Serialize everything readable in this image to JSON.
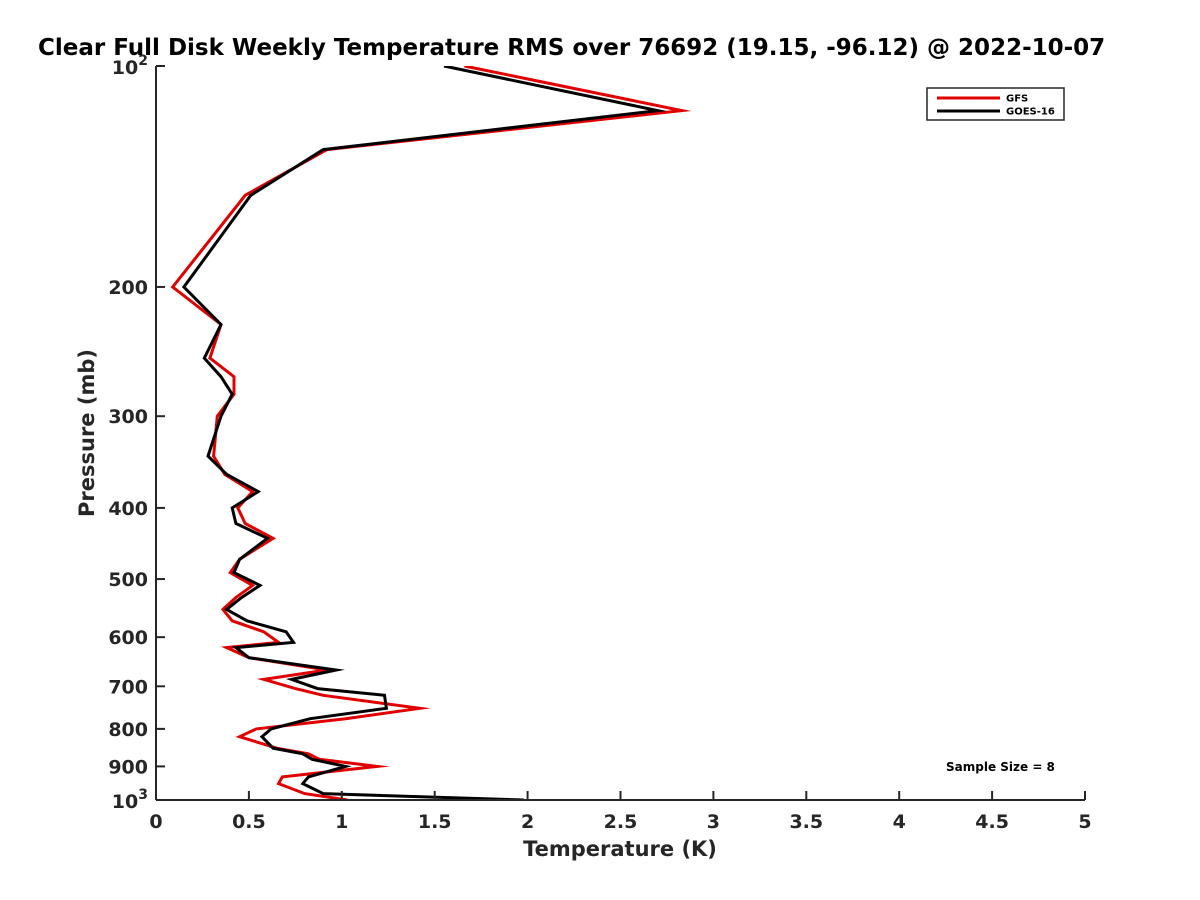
{
  "chart_data": {
    "type": "line",
    "title": "Clear Full Disk Weekly Temperature RMS over 76692 (19.15, -96.12) @ 2022-10-07",
    "xlabel": "Temperature (K)",
    "ylabel": "Pressure (mb)",
    "xlim": [
      0,
      5
    ],
    "ylim": [
      100,
      1000
    ],
    "yscale": "log",
    "y_reversed": true,
    "grid": false,
    "legend_position": "top-right",
    "x_ticks": [
      "0",
      "0.5",
      "1",
      "1.5",
      "2",
      "2.5",
      "3",
      "3.5",
      "4",
      "4.5",
      "5"
    ],
    "y_ticks": [
      {
        "value": 100,
        "label": "10",
        "sup": "2"
      },
      {
        "value": 200,
        "label": "200"
      },
      {
        "value": 300,
        "label": "300"
      },
      {
        "value": 400,
        "label": "400"
      },
      {
        "value": 500,
        "label": "500"
      },
      {
        "value": 600,
        "label": "600"
      },
      {
        "value": 700,
        "label": "700"
      },
      {
        "value": 800,
        "label": "800"
      },
      {
        "value": 900,
        "label": "900"
      },
      {
        "value": 1000,
        "label": "10",
        "sup": "3"
      }
    ],
    "series": [
      {
        "name": "GFS",
        "color": "#e00000",
        "points": [
          [
            1.66,
            100
          ],
          [
            2.83,
            115
          ],
          [
            0.92,
            130
          ],
          [
            0.48,
            150
          ],
          [
            0.09,
            200
          ],
          [
            0.35,
            225
          ],
          [
            0.29,
            250
          ],
          [
            0.42,
            265
          ],
          [
            0.42,
            280
          ],
          [
            0.33,
            300
          ],
          [
            0.31,
            340
          ],
          [
            0.37,
            360
          ],
          [
            0.52,
            380
          ],
          [
            0.44,
            400
          ],
          [
            0.48,
            420
          ],
          [
            0.63,
            440
          ],
          [
            0.45,
            470
          ],
          [
            0.4,
            490
          ],
          [
            0.52,
            510
          ],
          [
            0.43,
            530
          ],
          [
            0.36,
            550
          ],
          [
            0.41,
            570
          ],
          [
            0.58,
            590
          ],
          [
            0.66,
            610
          ],
          [
            0.38,
            620
          ],
          [
            0.5,
            640
          ],
          [
            0.92,
            665
          ],
          [
            0.58,
            685
          ],
          [
            0.75,
            705
          ],
          [
            0.9,
            720
          ],
          [
            1.42,
            750
          ],
          [
            1.02,
            775
          ],
          [
            0.54,
            800
          ],
          [
            0.45,
            820
          ],
          [
            0.65,
            850
          ],
          [
            0.82,
            865
          ],
          [
            0.88,
            880
          ],
          [
            1.19,
            900
          ],
          [
            0.68,
            930
          ],
          [
            0.66,
            950
          ],
          [
            0.8,
            980
          ],
          [
            1.03,
            1000
          ]
        ]
      },
      {
        "name": "GOES-16",
        "color": "#000000",
        "points": [
          [
            1.55,
            100
          ],
          [
            2.7,
            115
          ],
          [
            0.9,
            130
          ],
          [
            0.51,
            150
          ],
          [
            0.15,
            200
          ],
          [
            0.35,
            225
          ],
          [
            0.26,
            250
          ],
          [
            0.35,
            265
          ],
          [
            0.41,
            280
          ],
          [
            0.35,
            300
          ],
          [
            0.28,
            340
          ],
          [
            0.38,
            360
          ],
          [
            0.55,
            380
          ],
          [
            0.41,
            400
          ],
          [
            0.43,
            420
          ],
          [
            0.6,
            440
          ],
          [
            0.45,
            470
          ],
          [
            0.42,
            490
          ],
          [
            0.56,
            510
          ],
          [
            0.46,
            530
          ],
          [
            0.38,
            550
          ],
          [
            0.49,
            570
          ],
          [
            0.7,
            590
          ],
          [
            0.74,
            610
          ],
          [
            0.43,
            620
          ],
          [
            0.5,
            640
          ],
          [
            0.97,
            665
          ],
          [
            0.73,
            685
          ],
          [
            0.87,
            705
          ],
          [
            1.23,
            720
          ],
          [
            1.24,
            750
          ],
          [
            0.83,
            775
          ],
          [
            0.62,
            800
          ],
          [
            0.57,
            820
          ],
          [
            0.63,
            850
          ],
          [
            0.79,
            865
          ],
          [
            0.84,
            880
          ],
          [
            1.02,
            900
          ],
          [
            0.82,
            930
          ],
          [
            0.79,
            950
          ],
          [
            0.9,
            980
          ],
          [
            1.98,
            1000
          ]
        ]
      }
    ],
    "annotations": [
      "Sample Size = 8"
    ]
  }
}
